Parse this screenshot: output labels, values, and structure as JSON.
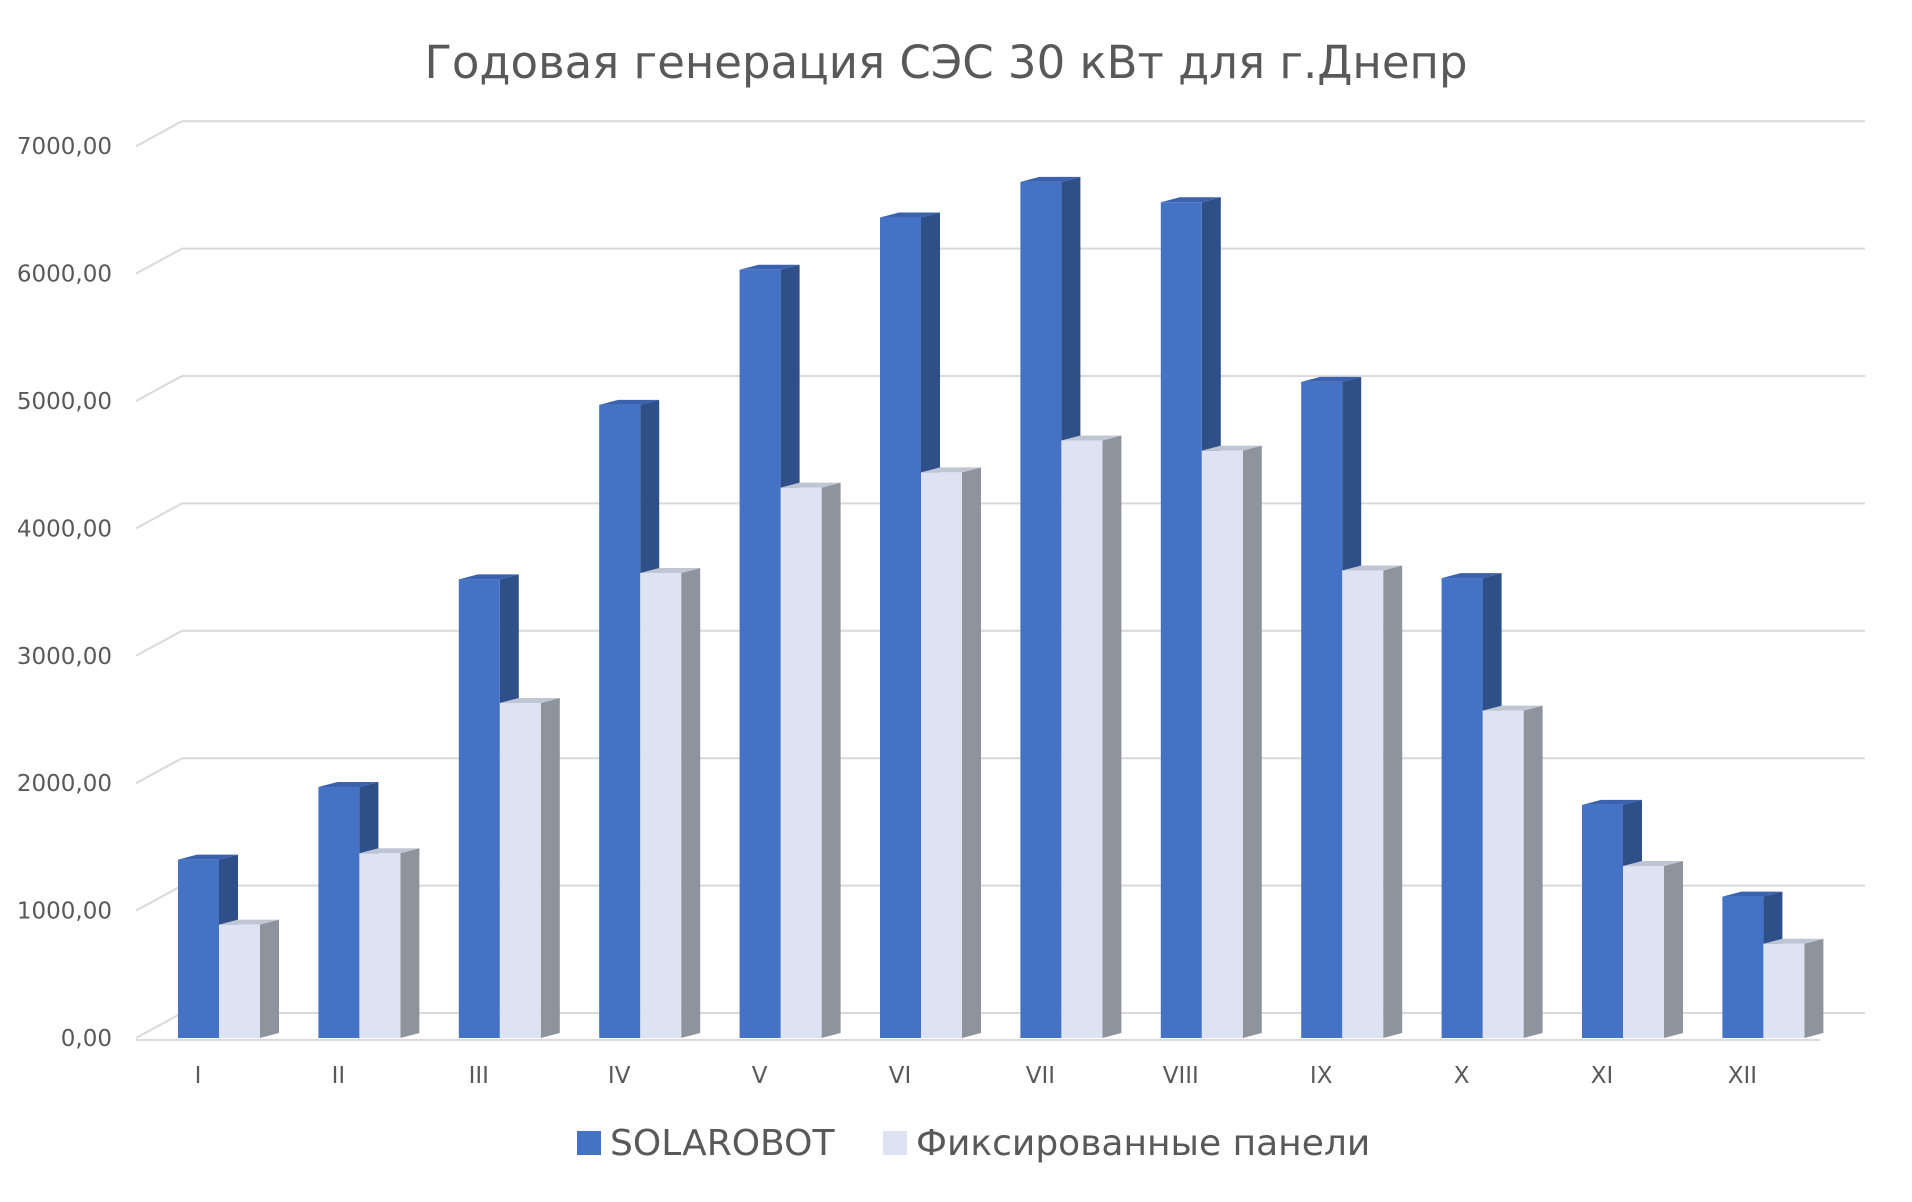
{
  "chart_data": {
    "type": "bar",
    "title": "Годовая генерация СЭС 30 кВт для г.Днепр",
    "xlabel": "",
    "ylabel": "",
    "ylim": [
      0,
      7000
    ],
    "y_ticks": [
      0,
      1000,
      2000,
      3000,
      4000,
      5000,
      6000,
      7000
    ],
    "y_tick_labels": [
      "0,00",
      "1000,00",
      "2000,00",
      "3000,00",
      "4000,00",
      "5000,00",
      "6000,00",
      "7000,00"
    ],
    "grid": true,
    "legend_position": "bottom",
    "categories": [
      "I",
      "II",
      "III",
      "IV",
      "V",
      "VI",
      "VII",
      "VIII",
      "IX",
      "X",
      "XI",
      "XII"
    ],
    "series": [
      {
        "name": "SOLAROBOT",
        "color": "#4472C4",
        "side_color": "#2F4F88",
        "top_color": "#3A62AE",
        "values": [
          1400,
          1970,
          3600,
          4970,
          6030,
          6440,
          6720,
          6560,
          5150,
          3610,
          1830,
          1110
        ]
      },
      {
        "name": "Фиксированные панели",
        "color": "#DDE3F3",
        "side_color": "#8E949D",
        "top_color": "#BFC6D3",
        "values": [
          890,
          1450,
          2630,
          3650,
          4320,
          4440,
          4690,
          4610,
          3670,
          2570,
          1350,
          740
        ]
      }
    ]
  }
}
